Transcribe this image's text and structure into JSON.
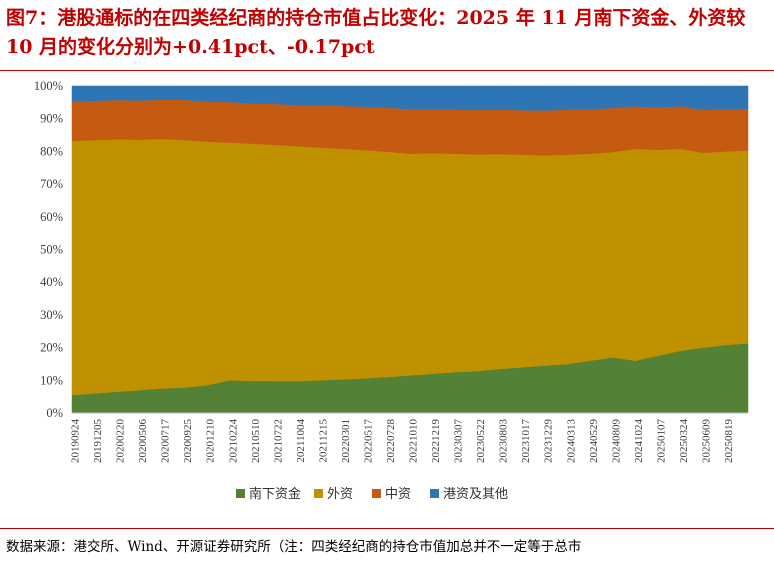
{
  "title": "图7：港股通标的在四类经纪商的持仓市值占比变化：2025 年 11 月南下资金、外资较 10 月的变化分别为+0.41pct、-0.17pct",
  "source": "数据来源：港交所、Wind、开源证券研究所（注：四类经纪商的持仓市值加总并不一定等于总市",
  "colors": {
    "title": "#c00000",
    "rule": "#c00000"
  },
  "chart_data": {
    "type": "area",
    "stacked": true,
    "yunit": "%",
    "ylim": [
      0,
      100
    ],
    "yticks": [
      "0%",
      "10%",
      "20%",
      "30%",
      "40%",
      "50%",
      "60%",
      "70%",
      "80%",
      "90%",
      "100%"
    ],
    "xticks": [
      "20190924",
      "20191205",
      "20200220",
      "20200506",
      "20200717",
      "20200925",
      "20201210",
      "20210224",
      "20210510",
      "20210722",
      "20211004",
      "20211215",
      "20220301",
      "20220517",
      "20220728",
      "20221010",
      "20221219",
      "20230307",
      "20230522",
      "20230803",
      "20231017",
      "20231229",
      "20240313",
      "20240529",
      "20240809",
      "20241024",
      "20250107",
      "20250324",
      "20250609",
      "20250819"
    ],
    "x": [
      "20190924",
      "20191205",
      "20200220",
      "20200506",
      "20200717",
      "20200925",
      "20201210",
      "20210224",
      "20210510",
      "20210722",
      "20211004",
      "20211215",
      "20220301",
      "20220517",
      "20220728",
      "20221010",
      "20221219",
      "20230307",
      "20230522",
      "20230803",
      "20231017",
      "20231229",
      "20240313",
      "20240529",
      "20240809",
      "20241024",
      "20250107",
      "20250324",
      "20250609",
      "20250819",
      "20251130"
    ],
    "grid": false,
    "legend_position": "bottom",
    "series": [
      {
        "name": "南下资金",
        "color": "#538135",
        "values": [
          5.5,
          6.0,
          6.5,
          7.0,
          7.5,
          7.8,
          8.5,
          10.0,
          9.8,
          9.8,
          9.7,
          10.0,
          10.3,
          10.6,
          11.0,
          11.5,
          12.0,
          12.5,
          12.8,
          13.5,
          14.0,
          14.5,
          15.0,
          16.0,
          17.0,
          16.0,
          17.5,
          19.0,
          20.0,
          20.8,
          21.3
        ]
      },
      {
        "name": "外资",
        "color": "#bf9000",
        "values": [
          77.7,
          77.5,
          77.2,
          76.6,
          76.3,
          75.7,
          74.5,
          72.7,
          72.6,
          72.2,
          71.9,
          71.2,
          70.5,
          69.8,
          68.9,
          67.8,
          67.4,
          66.8,
          66.3,
          65.7,
          65.0,
          64.3,
          64.0,
          63.3,
          62.8,
          64.8,
          63.0,
          61.8,
          59.6,
          59.2,
          59.0
        ]
      },
      {
        "name": "中资",
        "color": "#c55a11",
        "values": [
          12.0,
          12.0,
          12.0,
          12.0,
          12.0,
          12.3,
          12.2,
          12.4,
          12.3,
          12.5,
          12.6,
          12.9,
          13.1,
          13.3,
          13.5,
          13.6,
          13.5,
          13.5,
          13.6,
          13.6,
          13.6,
          13.7,
          13.8,
          13.6,
          13.5,
          13.0,
          13.0,
          13.0,
          13.1,
          13.0,
          12.7
        ]
      },
      {
        "name": "港资及其他",
        "color": "#2e75b6",
        "values": [
          4.8,
          4.5,
          4.3,
          4.4,
          4.2,
          4.2,
          4.8,
          4.9,
          5.3,
          5.5,
          5.8,
          5.9,
          6.1,
          6.3,
          6.6,
          7.1,
          7.1,
          7.2,
          7.3,
          7.2,
          7.4,
          7.5,
          7.2,
          7.1,
          6.7,
          6.2,
          6.5,
          6.2,
          7.3,
          7.0,
          7.0
        ]
      }
    ]
  }
}
